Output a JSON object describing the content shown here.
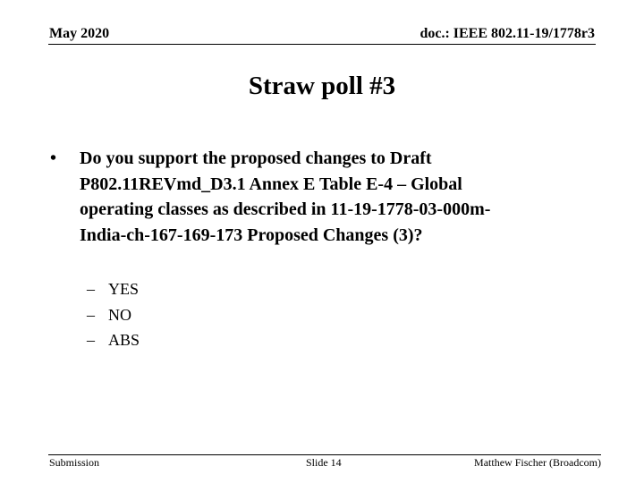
{
  "header": {
    "date": "May 2020",
    "doc_id": "doc.: IEEE 802.11-19/1778r3"
  },
  "title": "Straw poll #3",
  "bullet": {
    "marker": "•",
    "lines": [
      "Do you support the proposed changes to Draft",
      "P802.11REVmd_D3.1 Annex E Table E-4 – Global",
      "operating classes as described in 11-19-1778-03-000m-",
      "India-ch-167-169-173 Proposed Changes (3)?"
    ]
  },
  "options": [
    {
      "marker": "–",
      "label": "YES"
    },
    {
      "marker": "–",
      "label": "NO"
    },
    {
      "marker": "–",
      "label": "ABS"
    }
  ],
  "footer": {
    "left": "Submission",
    "center": "Slide 14",
    "right": "Matthew Fischer (Broadcom)"
  }
}
